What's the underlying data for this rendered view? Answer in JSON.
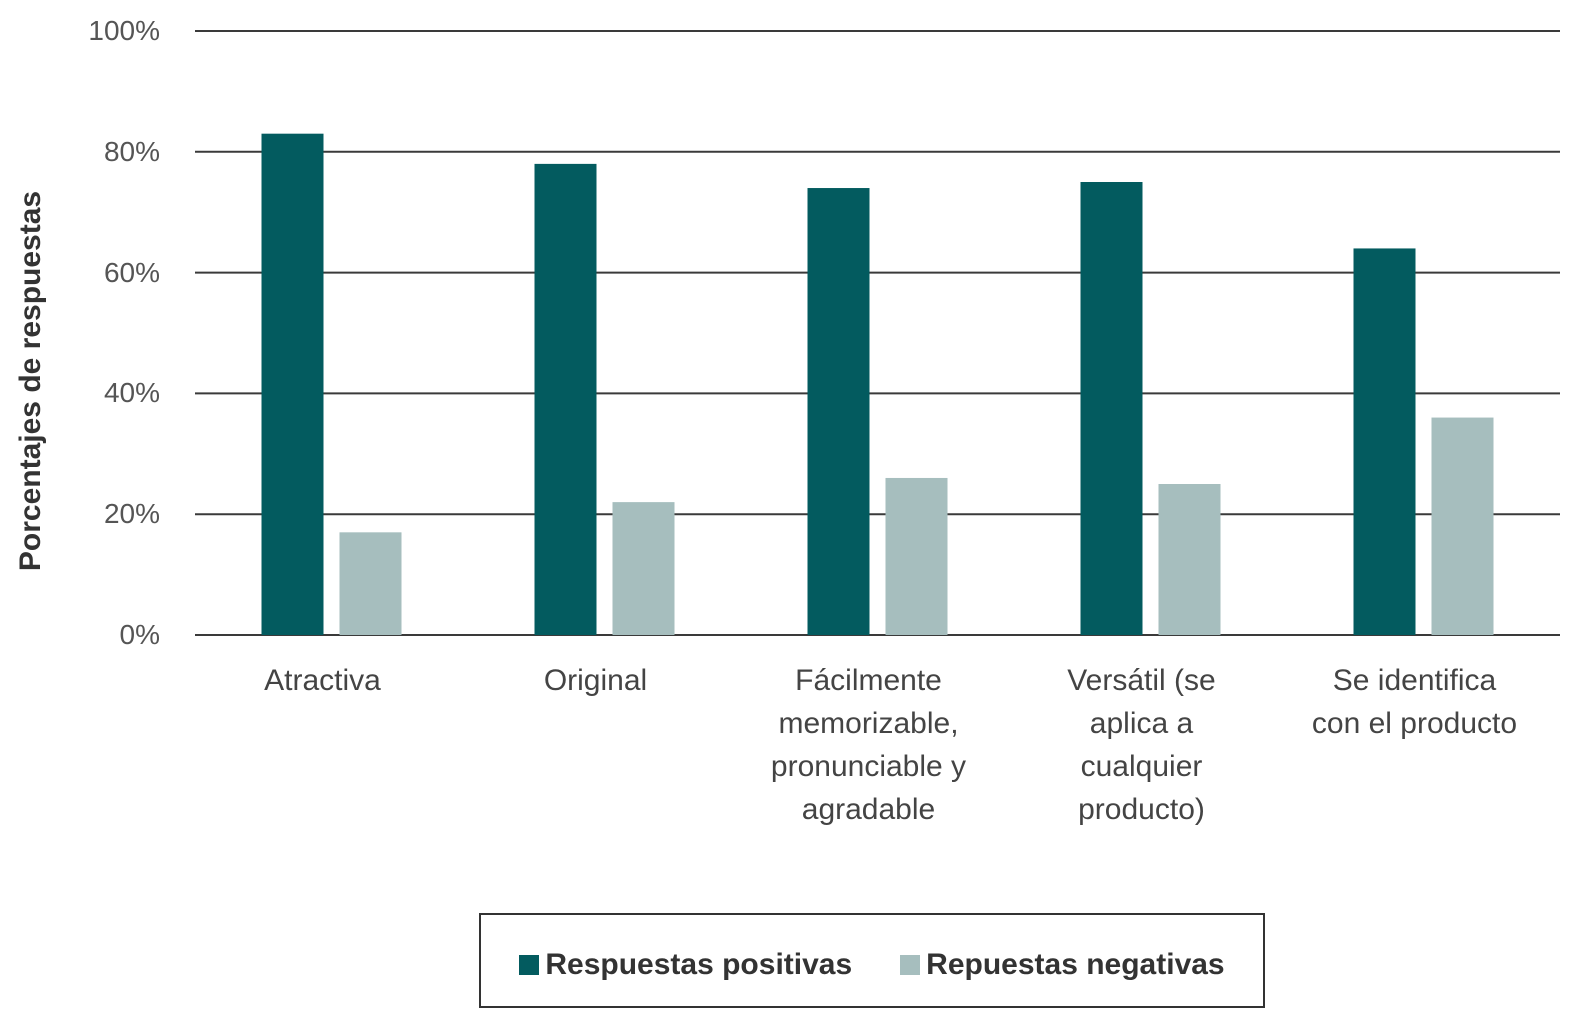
{
  "chart_data": {
    "type": "bar",
    "categories": [
      "Atractiva",
      "Original",
      "Fácilmente memorizable, pronunciable y agradable",
      "Versátil (se aplica a cualquier producto)",
      "Se identifica con el producto"
    ],
    "series": [
      {
        "name": "Respuestas positivas",
        "color": "#035b5f",
        "values": [
          83,
          78,
          74,
          75,
          64
        ]
      },
      {
        "name": "Repuestas negativas",
        "color": "#a6bebe",
        "values": [
          17,
          22,
          26,
          25,
          36
        ]
      }
    ],
    "ylabel": "Porcentajes de respuestas",
    "ylim": [
      0,
      100
    ],
    "ytick_values": [
      0,
      20,
      40,
      60,
      80,
      100
    ],
    "ytick_labels": [
      "0%",
      "20%",
      "40%",
      "60%",
      "80%",
      "100%"
    ],
    "grid": true,
    "legend_position": "bottom"
  }
}
